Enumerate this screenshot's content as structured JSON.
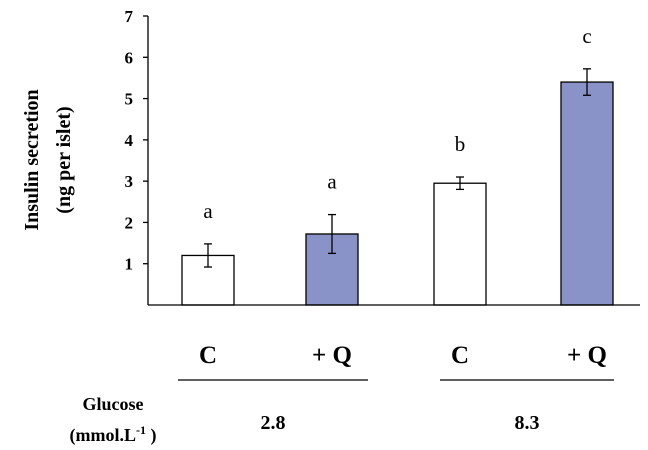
{
  "chart_data": {
    "type": "bar",
    "ylabel_line1": "Insulin secretion",
    "ylabel_line2": "(ng per islet)",
    "ylim": [
      0,
      7
    ],
    "yticks": [
      "1",
      "2",
      "3",
      "4",
      "5",
      "6",
      "7"
    ],
    "bars": [
      {
        "label": "C",
        "value": 1.2,
        "error": 0.28,
        "letter": "a",
        "fill": "#ffffff"
      },
      {
        "label": "+ Q",
        "value": 1.72,
        "error": 0.47,
        "letter": "a",
        "fill": "#8a93c8"
      },
      {
        "label": "C",
        "value": 2.95,
        "error": 0.15,
        "letter": "b",
        "fill": "#ffffff"
      },
      {
        "label": "+ Q",
        "value": 5.4,
        "error": 0.32,
        "letter": "c",
        "fill": "#8a93c8"
      }
    ],
    "glucose_label_line1": "Glucose",
    "glucose_label_line2": "(mmol.L",
    "glucose_label_sup": "-1",
    "glucose_label_close": " )",
    "groups": [
      {
        "value": "2.8"
      },
      {
        "value": "8.3"
      }
    ]
  }
}
